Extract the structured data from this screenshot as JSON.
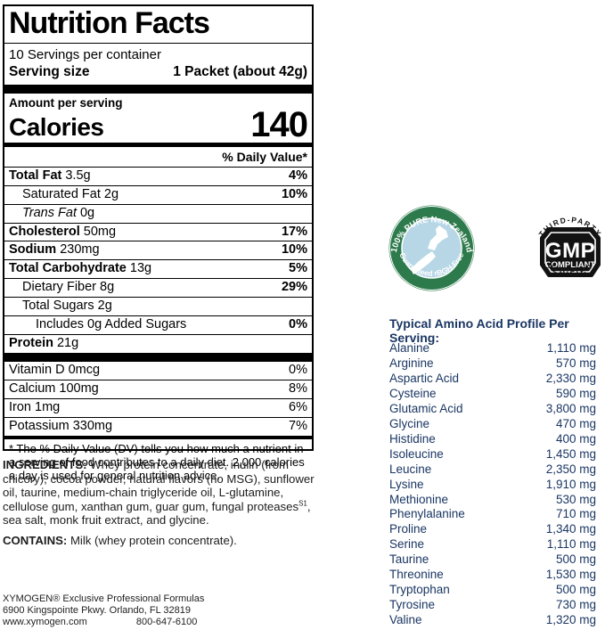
{
  "label": {
    "title": "Nutrition Facts",
    "servings_per_container": "10 Servings per container",
    "serving_size_label": "Serving size",
    "serving_size_value": "1 Packet (about 42g)",
    "amount_per_serving": "Amount per serving",
    "calories_label": "Calories",
    "calories_value": "140",
    "daily_value_header": "% Daily Value*",
    "nutrients": [
      {
        "bold": "Total Fat",
        "rest": " 3.5g",
        "pct": "4%",
        "indent": 0
      },
      {
        "bold": "",
        "rest": "Saturated Fat 2g",
        "pct": "10%",
        "indent": 1
      },
      {
        "bold": "",
        "italic": "Trans Fat",
        "rest": " 0g",
        "pct": "",
        "indent": 1
      },
      {
        "bold": "Cholesterol",
        "rest": " 50mg",
        "pct": "17%",
        "indent": 0
      },
      {
        "bold": "Sodium",
        "rest": " 230mg",
        "pct": "10%",
        "indent": 0
      },
      {
        "bold": "Total Carbohydrate",
        "rest": " 13g",
        "pct": "5%",
        "indent": 0
      },
      {
        "bold": "",
        "rest": "Dietary Fiber 8g",
        "pct": "29%",
        "indent": 1
      },
      {
        "bold": "",
        "rest": "Total Sugars 2g",
        "pct": "",
        "indent": 1
      },
      {
        "bold": "",
        "rest": "Includes 0g Added Sugars",
        "pct": "0%",
        "indent": 2
      },
      {
        "bold": "Protein",
        "rest": " 21g",
        "pct": "",
        "indent": 0
      }
    ],
    "vitamins": [
      {
        "text": "Vitamin D 0mcg",
        "pct": "0%"
      },
      {
        "text": "Calcium 100mg",
        "pct": "8%"
      },
      {
        "text": "Iron 1mg",
        "pct": "6%"
      },
      {
        "text": "Potassium 330mg",
        "pct": "7%"
      }
    ],
    "footnote": "* The % Daily Value (DV) tells you how much a nutrient in a serving of food contributes to a daily diet. 2,000 calories a day is used for general nutrition advice."
  },
  "ingredients": {
    "label": "INGREDIENTS:",
    "text_before_sup": " Whey protein concentrate, inulin (from chicory), cocoa powder, natural flavors (no MSG), sunflower oil, taurine, medium-chain triglyceride oil, L-glutamine, cellulose gum, xanthan gum, guar gum, fungal proteases",
    "sup": "S1",
    "text_after_sup": ", sea salt, monk fruit extract, and glycine."
  },
  "contains": {
    "label": "CONTAINS:",
    "text": " Milk (whey protein concentrate)."
  },
  "footer": {
    "line1": "XYMOGEN® Exclusive Professional Formulas",
    "line2": "6900 Kingspointe Pkwy. Orlando, FL 32819",
    "website": "www.xymogen.com",
    "phone": "800-647-6100"
  },
  "badges": {
    "nz_seal": {
      "top_text": "100% PURE New Zealand",
      "bottom_text": "Guaranteed rBGH-Free",
      "ring_color": "#2d7a4c",
      "inner_color": "#b7d7e6",
      "map_color": "#ffffff",
      "text_color": "#ffffff"
    },
    "gmp": {
      "top_text": "THIRD-PARTY",
      "center_line1": "GMP",
      "center_line2": "COMPLIANT",
      "bottom_text": "VERIFIED",
      "color": "#121212"
    }
  },
  "amino_profile": {
    "title": "Typical Amino Acid Profile Per Serving:",
    "text_color": "#1a3663",
    "rows": [
      {
        "name": "Alanine",
        "value": "1,110 mg"
      },
      {
        "name": "Arginine",
        "value": "570 mg"
      },
      {
        "name": "Aspartic Acid",
        "value": "2,330 mg"
      },
      {
        "name": "Cysteine",
        "value": "590 mg"
      },
      {
        "name": "Glutamic Acid",
        "value": "3,800 mg"
      },
      {
        "name": "Glycine",
        "value": "470 mg"
      },
      {
        "name": "Histidine",
        "value": "400 mg"
      },
      {
        "name": "Isoleucine",
        "value": "1,450 mg"
      },
      {
        "name": "Leucine",
        "value": "2,350 mg"
      },
      {
        "name": "Lysine",
        "value": "1,910 mg"
      },
      {
        "name": "Methionine",
        "value": "530 mg"
      },
      {
        "name": "Phenylalanine",
        "value": "710 mg"
      },
      {
        "name": "Proline",
        "value": "1,340 mg"
      },
      {
        "name": "Serine",
        "value": "1,110 mg"
      },
      {
        "name": "Taurine",
        "value": "500 mg"
      },
      {
        "name": "Threonine",
        "value": "1,530 mg"
      },
      {
        "name": "Tryptophan",
        "value": "500 mg"
      },
      {
        "name": "Tyrosine",
        "value": "730 mg"
      },
      {
        "name": "Valine",
        "value": "1,320 mg"
      }
    ]
  }
}
